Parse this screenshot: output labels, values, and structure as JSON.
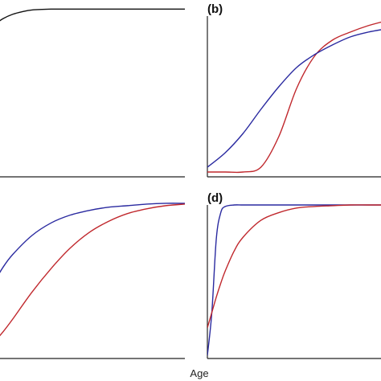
{
  "figure": {
    "xlabel": "Age",
    "colors": {
      "black": "#111111",
      "red": "#c0282d",
      "blue": "#2a2aa0",
      "axis": "#222222"
    }
  },
  "chart_data": [
    {
      "type": "line",
      "panel_label": "",
      "x": [
        0,
        0.02,
        0.05,
        0.1,
        0.15,
        0.2,
        0.3,
        0.4,
        0.5,
        0.6,
        0.7,
        0.8,
        0.9,
        1.0
      ],
      "series": [
        {
          "color": "black",
          "values": [
            0.86,
            0.895,
            0.92,
            0.945,
            0.96,
            0.97,
            0.975,
            0.975,
            0.975,
            0.975,
            0.975,
            0.975,
            0.975,
            0.975
          ]
        }
      ],
      "xlim": [
        0,
        1
      ],
      "ylim": [
        0,
        1
      ],
      "grid": false
    },
    {
      "type": "line",
      "panel_label": "(b)",
      "x": [
        0,
        0.1,
        0.2,
        0.3,
        0.4,
        0.5,
        0.6,
        0.7,
        0.8,
        0.9,
        1.0
      ],
      "series": [
        {
          "color": "red",
          "values": [
            0.03,
            0.03,
            0.03,
            0.06,
            0.25,
            0.55,
            0.75,
            0.85,
            0.9,
            0.94,
            0.97
          ]
        },
        {
          "color": "blue",
          "values": [
            0.06,
            0.15,
            0.27,
            0.42,
            0.56,
            0.68,
            0.76,
            0.82,
            0.87,
            0.9,
            0.92
          ]
        }
      ],
      "xlim": [
        0,
        1
      ],
      "ylim": [
        0,
        1
      ],
      "grid": false
    },
    {
      "type": "line",
      "panel_label": "",
      "x": [
        0,
        0.05,
        0.1,
        0.2,
        0.3,
        0.4,
        0.5,
        0.6,
        0.7,
        0.8,
        0.9,
        1.0
      ],
      "series": [
        {
          "color": "blue",
          "values": [
            0.48,
            0.58,
            0.66,
            0.78,
            0.86,
            0.91,
            0.94,
            0.96,
            0.97,
            0.98,
            0.985,
            0.985
          ]
        },
        {
          "color": "red",
          "values": [
            0.1,
            0.17,
            0.25,
            0.42,
            0.57,
            0.7,
            0.8,
            0.87,
            0.92,
            0.95,
            0.97,
            0.98
          ]
        }
      ],
      "xlim": [
        0,
        1
      ],
      "ylim": [
        0,
        1
      ],
      "grid": false
    },
    {
      "type": "line",
      "panel_label": "(d)",
      "x": [
        0,
        0.025,
        0.05,
        0.075,
        0.1,
        0.15,
        0.2,
        0.3,
        0.4,
        0.5,
        0.6,
        0.7,
        0.8,
        0.9,
        1.0
      ],
      "series": [
        {
          "color": "blue",
          "values": [
            0.02,
            0.3,
            0.78,
            0.95,
            0.99,
            1.0,
            1.0,
            1.0,
            1.0,
            1.0,
            1.0,
            1.0,
            1.0,
            1.0,
            1.0
          ]
        },
        {
          "color": "red",
          "values": [
            0.2,
            0.3,
            0.4,
            0.49,
            0.57,
            0.7,
            0.79,
            0.9,
            0.95,
            0.98,
            0.99,
            0.995,
            1.0,
            1.0,
            1.0
          ]
        }
      ],
      "xlim": [
        0,
        1
      ],
      "ylim": [
        0,
        1
      ],
      "grid": false
    }
  ]
}
